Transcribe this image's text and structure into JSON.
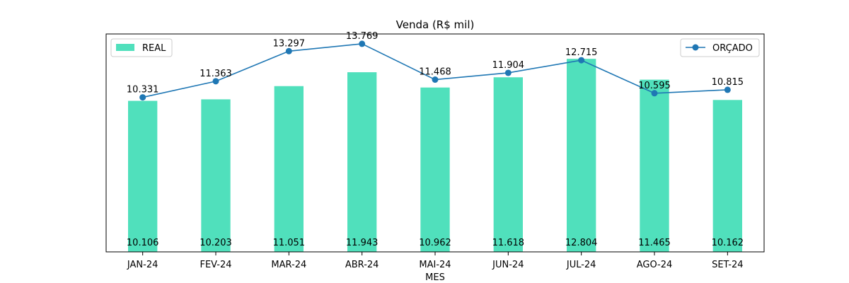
{
  "chart_data": {
    "type": "bar",
    "title": "Venda (R$ mil)",
    "xlabel": "MES",
    "ylabel": "",
    "categories": [
      "JAN-24",
      "FEV-24",
      "MAR-24",
      "ABR-24",
      "MAI-24",
      "JUN-24",
      "JUL-24",
      "AGO-24",
      "SET-24"
    ],
    "series": [
      {
        "name": "REAL",
        "type": "bar",
        "color": "#50e0bc",
        "values": [
          10.106,
          10.203,
          11.051,
          11.943,
          10.962,
          11.618,
          12.804,
          11.465,
          10.162
        ],
        "labels": [
          "10.106",
          "10.203",
          "11.051",
          "11.943",
          "10.962",
          "11.618",
          "12.804",
          "11.465",
          "10.162"
        ]
      },
      {
        "name": "ORÇADO",
        "type": "line",
        "color": "#1f77b4",
        "values": [
          10.331,
          11.363,
          13.297,
          13.769,
          11.468,
          11.904,
          12.715,
          10.595,
          10.815
        ],
        "labels": [
          "10.331",
          "11.363",
          "13.297",
          "13.769",
          "11.468",
          "11.904",
          "12.715",
          "10.595",
          "10.815"
        ]
      }
    ],
    "ylim": [
      0.41,
      14.4
    ],
    "grid": false,
    "y_ticks_visible": false,
    "legend_bars": "top-left",
    "legend_line": "top-right"
  }
}
